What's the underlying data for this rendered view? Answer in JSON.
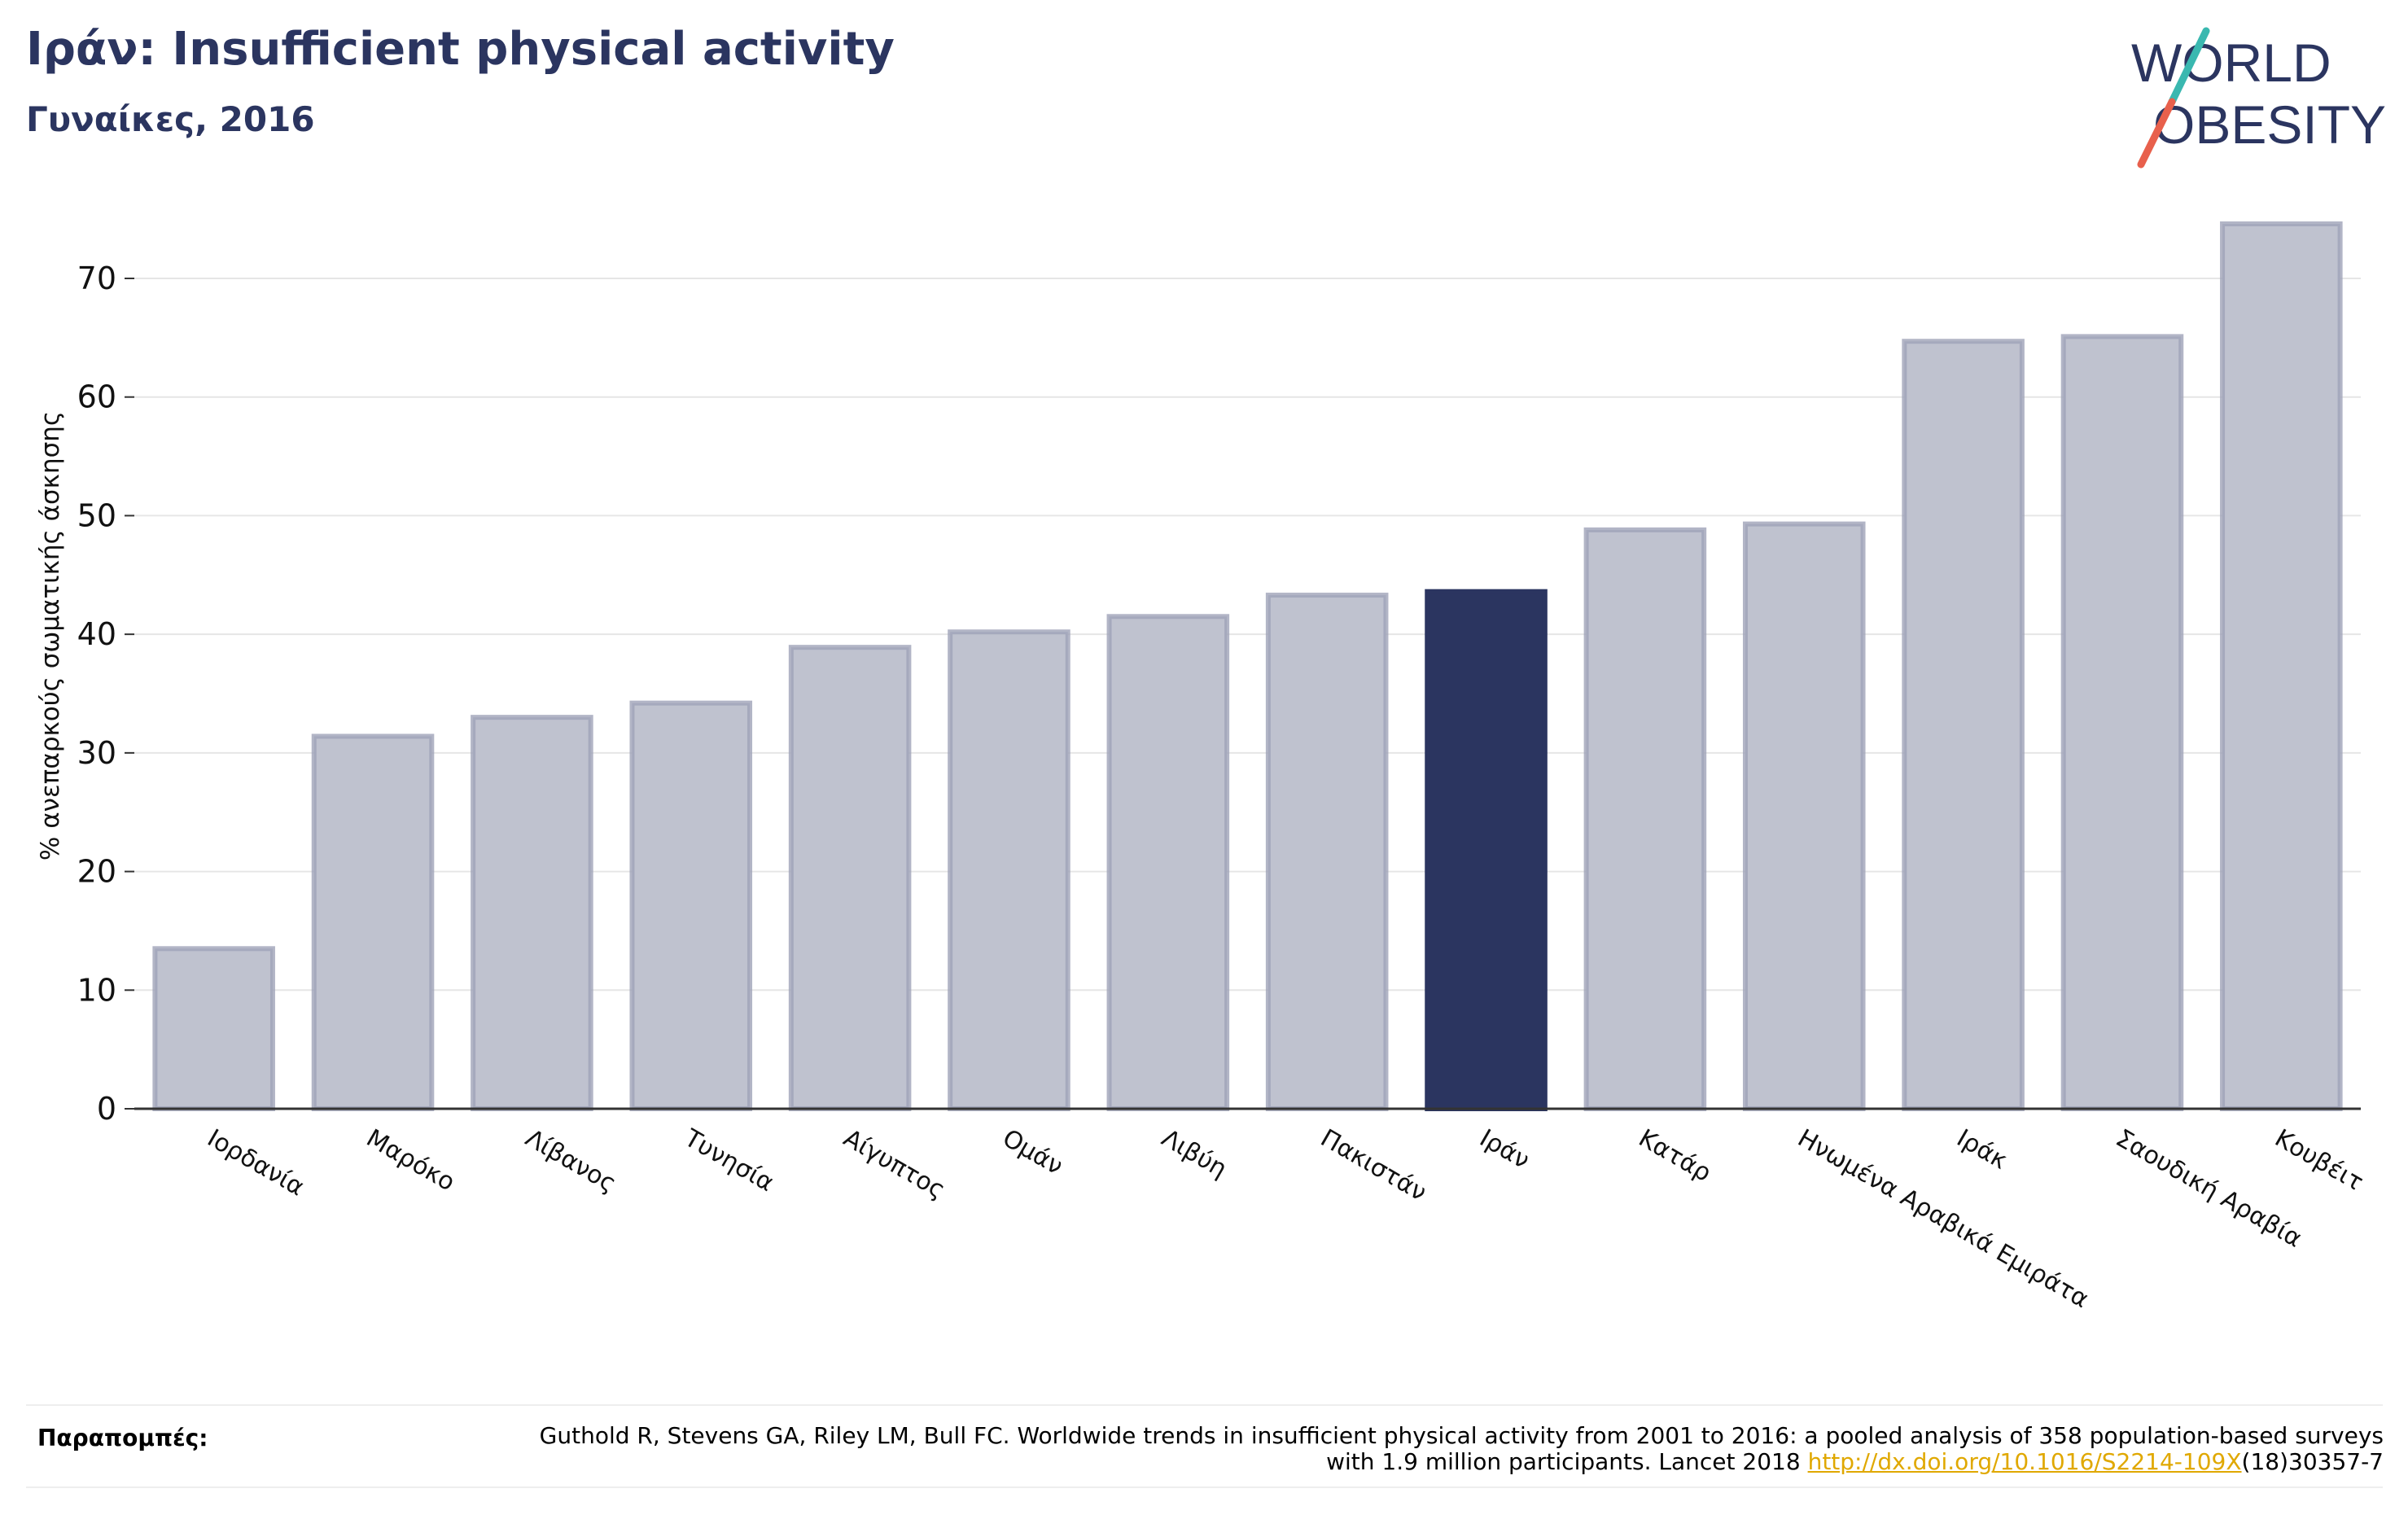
{
  "header": {
    "title": "Ιράν: Insufficient physical activity",
    "subtitle": "Γυναίκες, 2016"
  },
  "logo": {
    "line1": "WORLD",
    "line2": "OBESITY",
    "colors": {
      "text": "#2b3560",
      "slash_top": "#3ab8b0",
      "slash_bottom": "#e8604c"
    }
  },
  "chart_data": {
    "type": "bar",
    "categories": [
      "Ιορδανία",
      "Μαρόκο",
      "Λίβανος",
      "Τυνησία",
      "Αίγυπτος",
      "Ομάν",
      "Λιβύη",
      "Πακιστάν",
      "Ιράν",
      "Κατάρ",
      "Ηνωμένα Αραβικά Εμιράτα",
      "Ιράκ",
      "Σαουδική Αραβία",
      "Κουβέιτ"
    ],
    "values": [
      13.5,
      31.4,
      33.0,
      34.2,
      38.9,
      40.2,
      41.5,
      43.3,
      43.6,
      48.8,
      49.3,
      64.7,
      65.1,
      74.6
    ],
    "highlight": "Ιράν",
    "ylabel": "% ανεπαρκούς σωματικής άσκησης",
    "xlabel": "",
    "ylim": [
      0,
      77
    ],
    "yticks": [
      0,
      10,
      20,
      30,
      40,
      50,
      60,
      70
    ],
    "grid": true,
    "colors": {
      "bar": "#bfc2cf",
      "bar_edge": "#9fa3b8",
      "highlight": "#2b3560",
      "grid": "#e6e6e6",
      "axis": "#333333"
    }
  },
  "references": {
    "label": "Παραπομπές:",
    "text": "Guthold R, Stevens GA, Riley LM, Bull FC. Worldwide trends in insufficient physical activity from 2001 to 2016: a pooled analysis of 358 population-based surveys with 1.9 million participants. Lancet 2018 ",
    "link": "http://dx.doi.org/10.1016/S2214-109X",
    "suffix": "(18)30357-7"
  }
}
